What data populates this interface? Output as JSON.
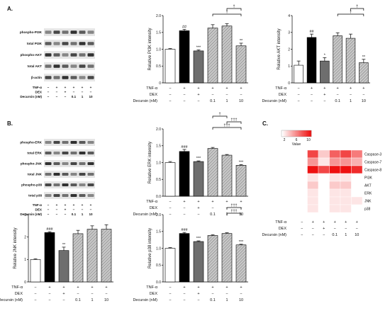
{
  "panels": [
    {
      "id": "A",
      "label": "A."
    },
    {
      "id": "B",
      "label": "B."
    },
    {
      "id": "C",
      "label": "C."
    }
  ],
  "condition_rows": [
    "TNF-α",
    "DEX",
    "Decursin (nM)"
  ],
  "condition_values": [
    [
      "−",
      "+",
      "+",
      "+",
      "+",
      "+"
    ],
    [
      "−",
      "−",
      "+",
      "−",
      "−",
      "−"
    ],
    [
      "−",
      "−",
      "−",
      "0.1",
      "1",
      "10"
    ]
  ],
  "blot_A": {
    "bands": [
      "phospho-PI3K",
      "total PI3K",
      "phospho-AKT",
      "total AKT",
      "β-actin"
    ],
    "conditions": [
      "TNF-α",
      "DEX",
      "Decursin (nM)"
    ]
  },
  "blot_B": {
    "bands": [
      "phospho-ERK",
      "total ERK",
      "phospho-JNK",
      "total JNK",
      "phospho-p38",
      "total p38"
    ],
    "conditions": [
      "TNF-α",
      "DEX",
      "Decursin (nM)"
    ]
  },
  "chart_data": [
    {
      "id": "pi3k",
      "type": "bar",
      "ylabel": "Relative PI3K intensity",
      "ylim": [
        0,
        2
      ],
      "yticks": [
        "0",
        "0.5",
        "1.0",
        "1.5",
        "2.0"
      ],
      "values": [
        1.0,
        1.55,
        0.95,
        1.63,
        1.69,
        1.1
      ],
      "errors": [
        0.02,
        0.04,
        0.03,
        0.1,
        0.07,
        0.08
      ],
      "sig": [
        "",
        "##",
        "***",
        "",
        "",
        "**"
      ],
      "brackets": [
        {
          "from": 3,
          "to": 5,
          "label": "†",
          "level": 0
        },
        {
          "from": 4,
          "to": 5,
          "label": "†",
          "level": 1
        }
      ]
    },
    {
      "id": "akt",
      "type": "bar",
      "ylabel": "Relative AKT intensity",
      "ylim": [
        0,
        4
      ],
      "yticks": [
        "0",
        "1",
        "2",
        "3",
        "4"
      ],
      "values": [
        1.05,
        2.7,
        1.3,
        2.8,
        2.65,
        1.2
      ],
      "errors": [
        0.25,
        0.2,
        0.2,
        0.18,
        0.25,
        0.2
      ],
      "sig": [
        "",
        "##",
        "*",
        "",
        "",
        "**"
      ],
      "brackets": [
        {
          "from": 3,
          "to": 5,
          "label": "†",
          "level": 0
        },
        {
          "from": 4,
          "to": 5,
          "label": "†",
          "level": 1
        }
      ]
    },
    {
      "id": "erk",
      "type": "bar",
      "ylabel": "Relative ERK intensity",
      "ylim": [
        0,
        2
      ],
      "yticks": [
        "0.0",
        "0.5",
        "1.0",
        "1.5",
        "2.0"
      ],
      "values": [
        1.0,
        1.33,
        1.03,
        1.42,
        1.22,
        0.92
      ],
      "errors": [
        0.03,
        0.06,
        0.02,
        0.03,
        0.02,
        0.02
      ],
      "sig": [
        "",
        "###",
        "***",
        "",
        "",
        "***"
      ],
      "brackets": [
        {
          "from": 3,
          "to": 5,
          "label": "†††",
          "level": 0
        },
        {
          "from": 4,
          "to": 5,
          "label": "†††",
          "level": 1
        },
        {
          "from": 3,
          "to": 4,
          "label": "†",
          "level": 2
        }
      ]
    },
    {
      "id": "jnk",
      "type": "bar",
      "ylabel": "Relative JNK intensity",
      "ylim": [
        0,
        3
      ],
      "yticks": [
        "0",
        "1",
        "2",
        "3"
      ],
      "values": [
        1.0,
        2.2,
        1.4,
        2.15,
        2.35,
        2.35
      ],
      "errors": [
        0.03,
        0.04,
        0.15,
        0.15,
        0.15,
        0.2
      ],
      "sig": [
        "",
        "###",
        "**",
        "",
        "",
        ""
      ],
      "brackets": []
    },
    {
      "id": "p38",
      "type": "bar",
      "ylabel": "Relative p38 intensity",
      "ylim": [
        0,
        2
      ],
      "yticks": [
        "0.0",
        "0.5",
        "1.0",
        "1.5",
        "2.0"
      ],
      "values": [
        1.0,
        1.44,
        1.2,
        1.38,
        1.44,
        1.1
      ],
      "errors": [
        0.02,
        0.03,
        0.02,
        0.02,
        0.02,
        0.02
      ],
      "sig": [
        "",
        "###",
        "***",
        "",
        "",
        "***"
      ],
      "brackets": [
        {
          "from": 4,
          "to": 5,
          "label": "†††",
          "level": 0
        },
        {
          "from": 4,
          "to": 5,
          "label": "†††",
          "level": 1
        }
      ]
    }
  ],
  "heatmap": {
    "rows": [
      "Caspase-3",
      "Caspase-7",
      "Caspase-8",
      "PI3K",
      "AKT",
      "ERK",
      "JNK",
      "p38"
    ],
    "scale_ticks": [
      "2",
      "6",
      "10"
    ],
    "scale_label": "Value",
    "values": [
      [
        1,
        8,
        3,
        7,
        8,
        6
      ],
      [
        1,
        5,
        2,
        5,
        5,
        4
      ],
      [
        1,
        10,
        8,
        10,
        10,
        9
      ],
      [
        1,
        2,
        1,
        2,
        2,
        1
      ],
      [
        1,
        3,
        1,
        3,
        3,
        1
      ],
      [
        1,
        2,
        1,
        2,
        2,
        1
      ],
      [
        1,
        2,
        1,
        2,
        2,
        2
      ],
      [
        1,
        2,
        1,
        2,
        2,
        1
      ]
    ],
    "colors": {
      "low": "#ffffff",
      "high": "#ee1111"
    }
  }
}
